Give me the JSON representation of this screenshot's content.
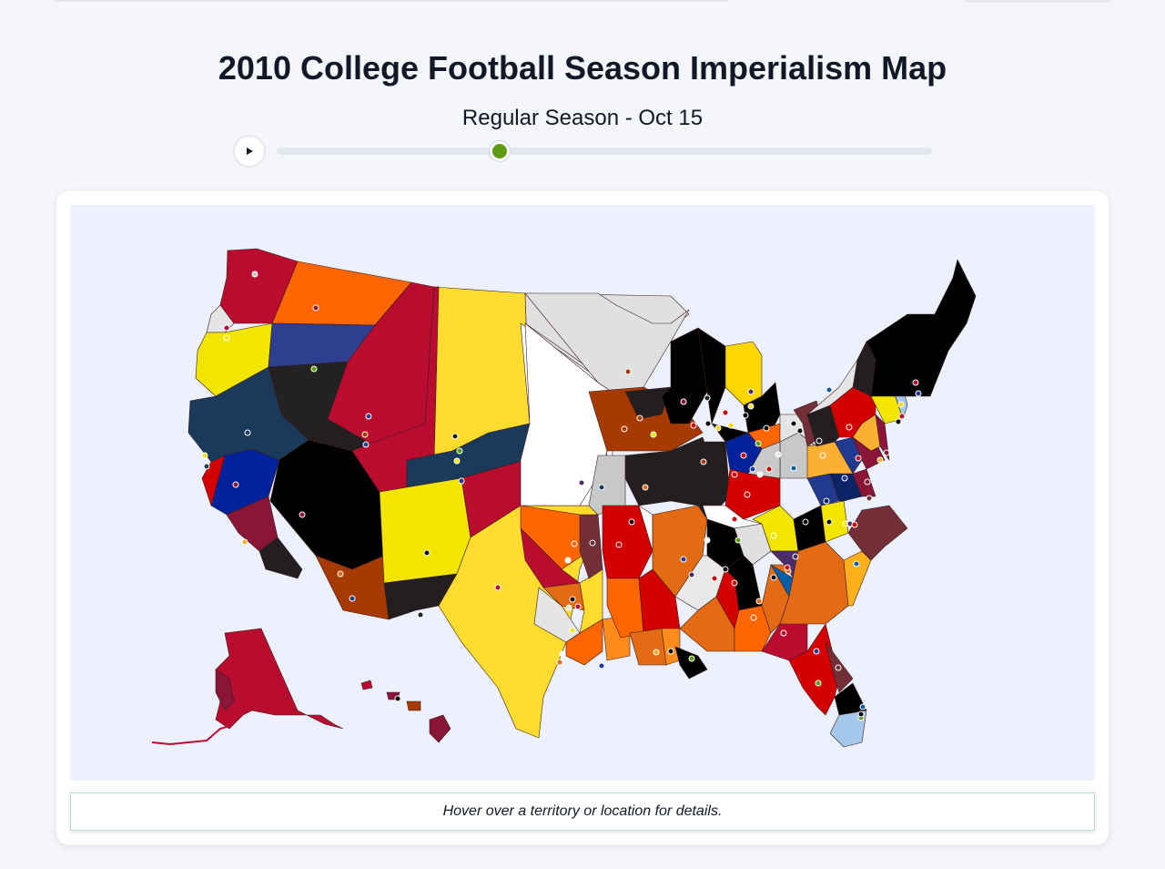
{
  "header": {
    "title": "2010 College Football Season Imperialism Map",
    "subtitle": "Regular Season - Oct 15"
  },
  "timeline": {
    "play_icon": "play-icon",
    "position_fraction": 0.34
  },
  "info_box": {
    "text": "Hover over a territory or location for details."
  },
  "colors": {
    "page_bg": "#f4f6fa",
    "map_bg": "#edf1fd",
    "slider_thumb": "#5d9b15",
    "slider_track": "#e2e8f0"
  }
}
